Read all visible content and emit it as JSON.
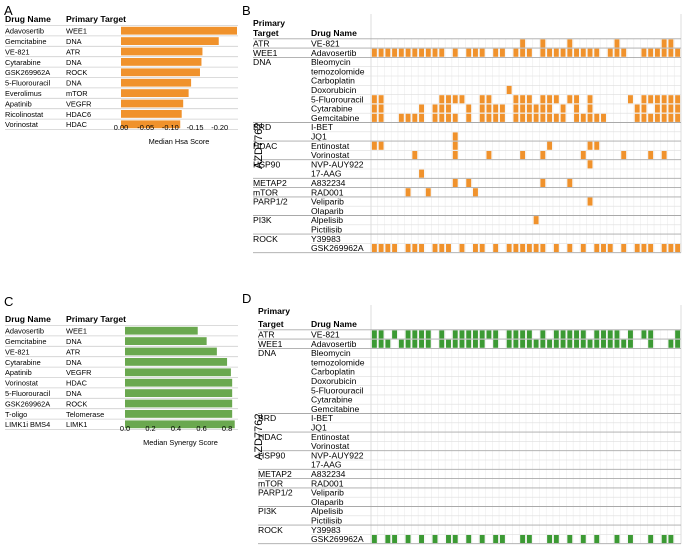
{
  "panels": [
    {
      "letter": "A"
    },
    {
      "letter": "B"
    },
    {
      "letter": "C"
    },
    {
      "letter": "D"
    }
  ],
  "chart_data": [
    {
      "panel": "A",
      "type": "bar",
      "orientation": "horizontal",
      "column_headers": [
        "Drug Name",
        "Primary Target"
      ],
      "categories": [
        "Adavosertib",
        "Gemcitabine",
        "VE-821",
        "Cytarabine",
        "GSK269962A",
        "5-Fluorouracil",
        "Everolimus",
        "Apatinib",
        "Ricolinostat",
        "Vorinostat"
      ],
      "targets": [
        "WEE1",
        "DNA",
        "ATR",
        "DNA",
        "ROCK",
        "DNA",
        "mTOR",
        "VEGFR",
        "HDAC6",
        "HDAC"
      ],
      "values": [
        -0.235,
        -0.198,
        -0.165,
        -0.163,
        -0.16,
        -0.142,
        -0.137,
        -0.126,
        -0.123,
        -0.12
      ],
      "xlim": [
        0,
        -0.235
      ],
      "xticks": [
        {
          "v": 0,
          "label": "0.00"
        },
        {
          "v": -0.05,
          "label": "-0.05"
        },
        {
          "v": -0.1,
          "label": "-0.10"
        },
        {
          "v": -0.15,
          "label": "-0.15"
        },
        {
          "v": -0.2,
          "label": "-0.20"
        }
      ],
      "xlabel": "Median Hsa Score",
      "color": "#f0922c"
    },
    {
      "panel": "C",
      "type": "bar",
      "orientation": "horizontal",
      "column_headers": [
        "Drug Name",
        "Primary Target"
      ],
      "categories": [
        "Adavosertib",
        "Gemcitabine",
        "VE-821",
        "Cytarabine",
        "Apatinib",
        "Vorinostat",
        "5-Fluorouracil",
        "GSK269962A",
        "T-oligo",
        "LIMK1i BMS4"
      ],
      "targets": [
        "WEE1",
        "DNA",
        "ATR",
        "DNA",
        "VEGFR",
        "HDAC",
        "DNA",
        "ROCK",
        "Telomerase",
        "LIMK1"
      ],
      "values": [
        0.57,
        0.64,
        0.72,
        0.8,
        0.83,
        0.84,
        0.84,
        0.84,
        0.84,
        0.86
      ],
      "xlim": [
        0,
        0.87
      ],
      "xticks": [
        {
          "v": 0,
          "label": "0.0"
        },
        {
          "v": 0.2,
          "label": "0.2"
        },
        {
          "v": 0.4,
          "label": "0.4"
        },
        {
          "v": 0.6,
          "label": "0.6"
        },
        {
          "v": 0.8,
          "label": "0.8"
        }
      ],
      "xlabel": "Median Synergy Score",
      "color": "#6aa84f"
    },
    {
      "panel": "B",
      "type": "heatmap",
      "headers": [
        "Primary",
        "Target",
        "Drug Name"
      ],
      "row_axis_label": "AZD7762",
      "color": "#f0922c",
      "rows": [
        {
          "target": "ATR",
          "drug": "VE-821",
          "pattern": "0000000000000000000000100100010000001000000110"
        },
        {
          "target": "WEE1",
          "drug": "Adavosertib",
          "pattern": "1111111111101011101101110111111111011100111111"
        },
        {
          "target": "DNA",
          "drug": "Bleomycin",
          "pattern": "0000000000000000000000000000000000000000000000"
        },
        {
          "target": "",
          "drug": "temozolomide",
          "pattern": "0000000000000000000000000000000000000000000000"
        },
        {
          "target": "",
          "drug": "Carboplatin",
          "pattern": "0000000000000000000000000000000000000000000000"
        },
        {
          "target": "",
          "drug": "Doxorubicin",
          "pattern": "0000000000000000000010000000000000000000000000"
        },
        {
          "target": "",
          "drug": "5-Fluorouracil",
          "pattern": "1100000000111100110001110111011010000010111111"
        },
        {
          "target": "",
          "drug": "Cytarabine",
          "pattern": "1100000101110010111101111110101010000001101111"
        },
        {
          "target": "",
          "drug": "Gemcitabine",
          "pattern": "1100111101111010111101111111101111100001111111"
        },
        {
          "target": "BRD",
          "drug": "I-BET",
          "pattern": "0000000000000000000000000000000000000000000000"
        },
        {
          "target": "",
          "drug": "JQ1",
          "pattern": "0000000000001000000000000000000000000000000000"
        },
        {
          "target": "HDAC",
          "drug": "Entinostat",
          "pattern": "1100000000001000000000000010000011000000000000"
        },
        {
          "target": "",
          "drug": "Vorinostat",
          "pattern": "0000001000001000010000100100000100000100010100"
        },
        {
          "target": "HSP90",
          "drug": "NVP-AUY922",
          "pattern": "0000000000000000000000000000000010000000000000"
        },
        {
          "target": "",
          "drug": "17-AAG",
          "pattern": "0000000100000000000000000000000000000000000000"
        },
        {
          "target": "METAP2",
          "drug": "A832234",
          "pattern": "0000000000001010000000000100010000000000000000"
        },
        {
          "target": "mTOR",
          "drug": "RAD001",
          "pattern": "0000010010000001000000000000000000000000000000"
        },
        {
          "target": "PARP1/2",
          "drug": "Veliparib",
          "pattern": "0000000000000000000000000000000010000000000000"
        },
        {
          "target": "",
          "drug": "Olaparib",
          "pattern": "0000000000000000000000000000000000000000000000"
        },
        {
          "target": "PI3K",
          "drug": "Alpelisib",
          "pattern": "0000000000000000000000001000000000000000000000"
        },
        {
          "target": "",
          "drug": "Pictilisib",
          "pattern": "0000000000000000000000000000000000000000000000"
        },
        {
          "target": "ROCK",
          "drug": "Y39983",
          "pattern": "0000000000000000000000000000000000000000000000"
        },
        {
          "target": "",
          "drug": "GSK269962A",
          "pattern": "1111011101110101101011111101010101110101110111"
        }
      ]
    },
    {
      "panel": "D",
      "type": "heatmap",
      "headers": [
        "Primary",
        "Target",
        "Drug Name"
      ],
      "row_axis_label": "AZD7762",
      "color": "#3c9a34",
      "rows": [
        {
          "target": "ATR",
          "drug": "VE-821",
          "pattern": "1101011110101111111011110101111101111010110001"
        },
        {
          "target": "WEE1",
          "drug": "Adavosertib",
          "pattern": "1110111110111111101011111111111111111110010011"
        },
        {
          "target": "DNA",
          "drug": "Bleomycin",
          "pattern": "0000000000000000000000000000000000000000000000"
        },
        {
          "target": "",
          "drug": "temozolomide",
          "pattern": "0000000000000000000000000000000000000000000000"
        },
        {
          "target": "",
          "drug": "Carboplatin",
          "pattern": "0000000000000000000000000000000000000000000000"
        },
        {
          "target": "",
          "drug": "Doxorubicin",
          "pattern": "0000000000000000000000000000000000000000000000"
        },
        {
          "target": "",
          "drug": "5-Fluorouracil",
          "pattern": "0000000000000000000000000000000000000000000000"
        },
        {
          "target": "",
          "drug": "Cytarabine",
          "pattern": "0000000000000000000000000000000000000000000000"
        },
        {
          "target": "",
          "drug": "Gemcitabine",
          "pattern": "0000000000000000000000000000000000000000000000"
        },
        {
          "target": "BRD",
          "drug": "I-BET",
          "pattern": "0000000000000000000000000000000000000000000000"
        },
        {
          "target": "",
          "drug": "JQ1",
          "pattern": "0000000000000000000000000000000000000000000000"
        },
        {
          "target": "HDAC",
          "drug": "Entinostat",
          "pattern": "0000000000000000000000000000000000000000000000"
        },
        {
          "target": "",
          "drug": "Vorinostat",
          "pattern": "0000000000000000000000000000000000000000000000"
        },
        {
          "target": "HSP90",
          "drug": "NVP-AUY922",
          "pattern": "0000000000000000000000000000000000000000000000"
        },
        {
          "target": "",
          "drug": "17-AAG",
          "pattern": "0000000000000000000000000000000000000000000000"
        },
        {
          "target": "METAP2",
          "drug": "A832234",
          "pattern": "0000000000000000000000000000000000000000000000"
        },
        {
          "target": "mTOR",
          "drug": "RAD001",
          "pattern": "0000000000000000000000000000000000000000000000"
        },
        {
          "target": "PARP1/2",
          "drug": "Veliparib",
          "pattern": "0000000000000000000000000000000000000000000000"
        },
        {
          "target": "",
          "drug": "Olaparib",
          "pattern": "0000000000000000000000000000000000000000000000"
        },
        {
          "target": "PI3K",
          "drug": "Alpelisib",
          "pattern": "0000000000000000000000000000000000000000000000"
        },
        {
          "target": "",
          "drug": "Pictilisib",
          "pattern": "0000000000000000000000000000000000000000000000"
        },
        {
          "target": "ROCK",
          "drug": "Y39983",
          "pattern": "0000000000000000000000000000000000000000000000"
        },
        {
          "target": "",
          "drug": "GSK269962A",
          "pattern": "1011010101011010101100110011010101001010010110"
        }
      ]
    }
  ]
}
